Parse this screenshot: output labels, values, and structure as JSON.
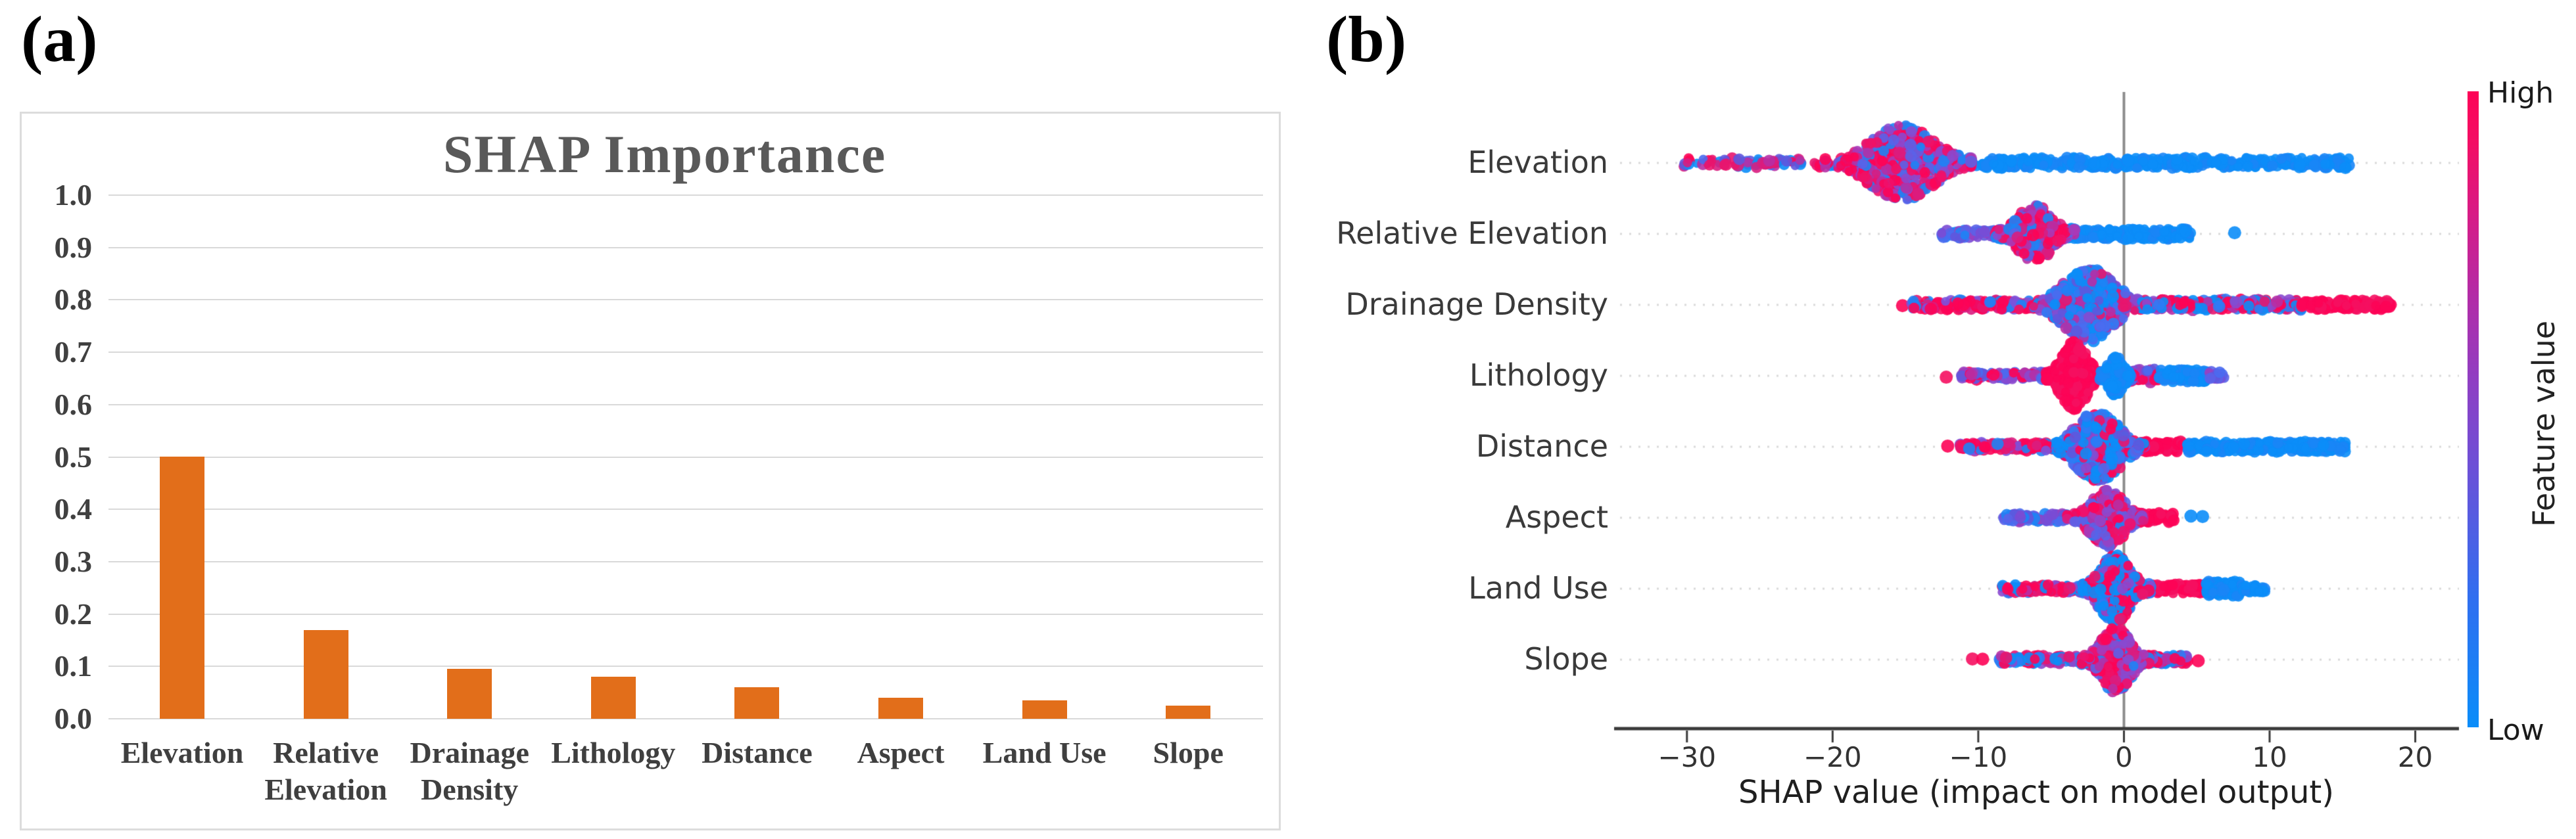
{
  "figure": {
    "panel_a_label": "(a)",
    "panel_b_label": "(b)"
  },
  "chart_data": [
    {
      "id": "shap-importance-bar",
      "type": "bar",
      "title": "SHAP Importance",
      "categories": [
        "Elevation",
        "Relative Elevation",
        "Drainage Density",
        "Lithology",
        "Distance",
        "Aspect",
        "Land Use",
        "Slope"
      ],
      "values": [
        0.5,
        0.17,
        0.095,
        0.08,
        0.06,
        0.04,
        0.035,
        0.025
      ],
      "xlabel": "",
      "ylabel": "",
      "ylim": [
        0.0,
        1.0
      ],
      "yticks": [
        {
          "v": 1.0,
          "label": "1.0"
        },
        {
          "v": 0.9,
          "label": "0.9"
        },
        {
          "v": 0.8,
          "label": "0.8"
        },
        {
          "v": 0.7,
          "label": "0.7"
        },
        {
          "v": 0.6,
          "label": "0.6"
        },
        {
          "v": 0.5,
          "label": "0.5"
        },
        {
          "v": 0.4,
          "label": "0.4"
        },
        {
          "v": 0.3,
          "label": "0.3"
        },
        {
          "v": 0.2,
          "label": "0.2"
        },
        {
          "v": 0.1,
          "label": "0.1"
        },
        {
          "v": 0.0,
          "label": "0.0"
        }
      ],
      "grid": true,
      "bar_color": "#e26e1a",
      "title_color": "#595959"
    },
    {
      "id": "shap-beeswarm",
      "type": "scatter",
      "xlabel": "SHAP value (impact on model output)",
      "xlim": [
        -35,
        23
      ],
      "xticks": [
        {
          "v": -30,
          "label": "−30"
        },
        {
          "v": -20,
          "label": "−20"
        },
        {
          "v": -10,
          "label": "−10"
        },
        {
          "v": 0,
          "label": "0"
        },
        {
          "v": 10,
          "label": "10"
        },
        {
          "v": 20,
          "label": "20"
        }
      ],
      "colorbar": {
        "high_label": "High",
        "low_label": "Low",
        "title": "Feature value",
        "high_color": "#fd0356",
        "low_color": "#0a8df9"
      },
      "palettes": {
        "blue": [
          "#0b8df8",
          "#1985f6",
          "#0b8df8"
        ],
        "red": [
          "#fd0356",
          "#f50f60",
          "#fd0356"
        ],
        "hotmix": [
          "#f1106a",
          "#d91d7f",
          "#b62fa5",
          "#8a49cf",
          "#5b62e8",
          "#1e83f5",
          "#fd0356",
          "#ef1166",
          "#a83ab8",
          "#fd0356"
        ],
        "purpleblue": [
          "#6157dd",
          "#7a4bd4",
          "#4a6cf0",
          "#1e83f5",
          "#9a3fc0",
          "#5b62e8"
        ],
        "purplered": [
          "#8a49cf",
          "#6157dd",
          "#fd0356",
          "#b62fa5",
          "#4a6cf0",
          "#fd0356",
          "#9a3fc0"
        ],
        "redmix": [
          "#fd0356",
          "#f50f60",
          "#fd0356",
          "#e8156e",
          "#1e83f5",
          "#7a53dd",
          "#fd0356",
          "#d91d7f"
        ],
        "bluepurple": [
          "#0b8df8",
          "#2f7bf5",
          "#4a6cf0",
          "#6157dd",
          "#8a49cf",
          "#e8156e",
          "#0b8df8",
          "#1e83f5",
          "#b62fa5"
        ],
        "mix": [
          "#fd0356",
          "#0b8df8",
          "#8a49cf",
          "#e8156e",
          "#2f7bf5",
          "#b62fa5",
          "#fd0356",
          "#0b8df8"
        ],
        "leftmix": [
          "#e8156e",
          "#d91d7f",
          "#fd0356",
          "#4a6cf0",
          "#0b8df8",
          "#b62fa5",
          "#6157dd"
        ],
        "coolmix": [
          "#0b8df8",
          "#2f7bf5",
          "#6157dd",
          "#8a49cf",
          "#e8156e",
          "#0b8df8",
          "#fd0356",
          "#4a6cf0",
          "#0b8df8"
        ],
        "coolred": [
          "#0b8df8",
          "#0b8df8",
          "#2f7bf5",
          "#fd0356",
          "#e8156e",
          "#8a49cf",
          "#0b8df8",
          "#fd0356"
        ]
      },
      "features": [
        {
          "name": "Elevation",
          "segments": [
            {
              "kind": "strip",
              "x0": -30.3,
              "x1": -12.0,
              "jitter": 7,
              "n": 140,
              "mix": "leftmix"
            },
            {
              "kind": "strip",
              "x0": -12.5,
              "x1": 15.5,
              "jitter": 8,
              "n": 430,
              "mix": "blue"
            },
            {
              "kind": "violin",
              "c": -15.2,
              "sd": 2.2,
              "x0": -20.5,
              "x1": -10.5,
              "maxR": 58,
              "n": 520,
              "mix": "hotmix"
            }
          ]
        },
        {
          "name": "Relative Elevation",
          "segments": [
            {
              "kind": "strip",
              "x0": -12.6,
              "x1": -8.8,
              "jitter": 6,
              "n": 60,
              "mix": "purpleblue"
            },
            {
              "kind": "strip",
              "x0": -8.8,
              "x1": 4.6,
              "jitter": 8,
              "n": 270,
              "mix": "blue"
            },
            {
              "kind": "violin",
              "c": -6.1,
              "sd": 1.15,
              "x0": -8.8,
              "x1": -3.4,
              "maxR": 44,
              "n": 340,
              "mix": "hotmix"
            },
            {
              "kind": "dots",
              "xs": [
                7.6
              ],
              "r": 10,
              "mix": "blue"
            }
          ]
        },
        {
          "name": "Drainage Density",
          "segments": [
            {
              "kind": "dots",
              "xs": [
                -15.2
              ],
              "r": 10,
              "mix": "red"
            },
            {
              "kind": "strip",
              "x0": -14.6,
              "x1": -4.6,
              "jitter": 7,
              "n": 180,
              "mix": "redmix"
            },
            {
              "kind": "strip",
              "x0": 0.5,
              "x1": 12.2,
              "jitter": 8,
              "n": 240,
              "mix": "mix"
            },
            {
              "kind": "strip",
              "x0": 12.2,
              "x1": 18.4,
              "jitter": 7,
              "n": 120,
              "mix": "red"
            },
            {
              "kind": "violin",
              "c": -2.4,
              "sd": 1.7,
              "x0": -6.2,
              "x1": 1.6,
              "maxR": 56,
              "n": 540,
              "mix": "bluepurple"
            }
          ]
        },
        {
          "name": "Lithology",
          "segments": [
            {
              "kind": "dots",
              "xs": [
                -12.2
              ],
              "r": 10,
              "mix": "red"
            },
            {
              "kind": "strip",
              "x0": -11.2,
              "x1": -5.2,
              "jitter": 6,
              "n": 110,
              "mix": "purplered"
            },
            {
              "kind": "strip",
              "x0": 0.4,
              "x1": 2.4,
              "jitter": 11,
              "n": 60,
              "mix": "purplered"
            },
            {
              "kind": "strip",
              "x0": 2.4,
              "x1": 5.8,
              "jitter": 9,
              "n": 100,
              "mix": "blue"
            },
            {
              "kind": "strip",
              "x0": 5.8,
              "x1": 6.9,
              "jitter": 6,
              "n": 18,
              "mix": "purpleblue"
            },
            {
              "kind": "violin",
              "c": -3.4,
              "sd": 0.85,
              "x0": -5.3,
              "x1": -1.7,
              "maxR": 52,
              "n": 400,
              "mix": "red"
            },
            {
              "kind": "violin",
              "c": -0.55,
              "sd": 0.5,
              "x0": -1.6,
              "x1": 0.4,
              "maxR": 30,
              "n": 170,
              "mix": "blue"
            }
          ]
        },
        {
          "name": "Distance",
          "segments": [
            {
              "kind": "dots",
              "xs": [
                -12.1
              ],
              "r": 10,
              "mix": "red"
            },
            {
              "kind": "strip",
              "x0": -11.4,
              "x1": -4.0,
              "jitter": 6,
              "n": 140,
              "mix": "redmix"
            },
            {
              "kind": "strip",
              "x0": 0.8,
              "x1": 4.3,
              "jitter": 8,
              "n": 95,
              "mix": "red"
            },
            {
              "kind": "strip",
              "x0": 4.3,
              "x1": 15.3,
              "jitter": 8,
              "n": 270,
              "mix": "blue"
            },
            {
              "kind": "violin",
              "c": -1.8,
              "sd": 1.45,
              "x0": -4.6,
              "x1": 1.4,
              "maxR": 54,
              "n": 430,
              "mix": "coolmix"
            }
          ]
        },
        {
          "name": "Aspect",
          "segments": [
            {
              "kind": "strip",
              "x0": -8.3,
              "x1": -3.9,
              "jitter": 6,
              "n": 80,
              "mix": "purpleblue"
            },
            {
              "kind": "strip",
              "x0": 0.8,
              "x1": 3.5,
              "jitter": 7,
              "n": 65,
              "mix": "red"
            },
            {
              "kind": "dots",
              "xs": [
                4.6,
                5.4
              ],
              "r": 10,
              "mix": "blue"
            },
            {
              "kind": "violin",
              "c": -1.1,
              "sd": 1.1,
              "x0": -3.9,
              "x1": 1.3,
              "maxR": 44,
              "n": 370,
              "mix": "hotmix"
            }
          ]
        },
        {
          "name": "Land Use",
          "segments": [
            {
              "kind": "strip",
              "x0": -8.4,
              "x1": -2.6,
              "jitter": 6,
              "n": 115,
              "mix": "mix"
            },
            {
              "kind": "strip",
              "x0": 1.2,
              "x1": 5.6,
              "jitter": 7,
              "n": 110,
              "mix": "red"
            },
            {
              "kind": "strip",
              "x0": 5.6,
              "x1": 8.0,
              "jitter": 11,
              "n": 150,
              "mix": "blue"
            },
            {
              "kind": "strip",
              "x0": 8.0,
              "x1": 9.7,
              "jitter": 6,
              "n": 35,
              "mix": "blue"
            },
            {
              "kind": "violin",
              "c": -0.6,
              "sd": 1.05,
              "x0": -2.8,
              "x1": 1.8,
              "maxR": 52,
              "n": 390,
              "mix": "coolred"
            }
          ]
        },
        {
          "name": "Slope",
          "segments": [
            {
              "kind": "dots",
              "xs": [
                -10.4,
                -9.7
              ],
              "r": 10,
              "mix": "red"
            },
            {
              "kind": "strip",
              "x0": -8.7,
              "x1": -2.9,
              "jitter": 6,
              "n": 105,
              "mix": "mix"
            },
            {
              "kind": "strip",
              "x0": 1.0,
              "x1": 4.4,
              "jitter": 7,
              "n": 75,
              "mix": "mix"
            },
            {
              "kind": "dots",
              "xs": [
                5.1
              ],
              "r": 10,
              "mix": "red"
            },
            {
              "kind": "violin",
              "c": -0.55,
              "sd": 1.0,
              "x0": -2.9,
              "x1": 1.7,
              "maxR": 50,
              "n": 370,
              "mix": "hotmix"
            }
          ]
        }
      ]
    }
  ]
}
